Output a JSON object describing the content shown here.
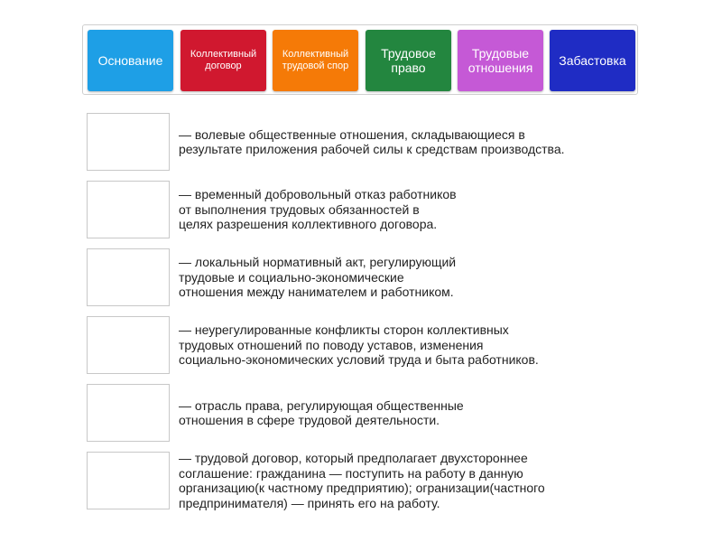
{
  "tiles": [
    {
      "label": "Основание",
      "color": "#1e9fe6",
      "size": "big"
    },
    {
      "label": "Коллективный договор",
      "color": "#d0182f",
      "size": "small"
    },
    {
      "label": "Коллективный трудовой спор",
      "color": "#f57a07",
      "size": "small"
    },
    {
      "label": "Трудовое право",
      "color": "#23863f",
      "size": "big"
    },
    {
      "label": "Трудовые отношения",
      "color": "#c559d6",
      "size": "big"
    },
    {
      "label": "Забастовка",
      "color": "#1f2cc4",
      "size": "big"
    }
  ],
  "definitions": [
    "— волевые общественные отношения, складывающиеся в\nрезультате приложения рабочей силы к средствам производства.",
    "— временный добровольный отказ работников\nот выполнения трудовых обязанностей в\nцелях разрешения коллективного договора.",
    "— локальный нормативный акт, регулирующий\nтрудовые и социально-экономические\nотношения между нанимателем и работником.",
    "— неурегулированные конфликты сторон коллективных\nтрудовых отношений по поводу уставов, изменения\nсоциально-экономических условий труда и быта работников.",
    "— отрасль права, регулирующая общественные\nотношения в сфере трудовой деятельности.",
    "— трудовой договор, который предполагает двухстороннее\nсоглашение: гражданина — поступить на работу в данную\nорганизацию(к частному предприятию); огранизации(частного\nпредпринимателя) — принять его на работу."
  ]
}
